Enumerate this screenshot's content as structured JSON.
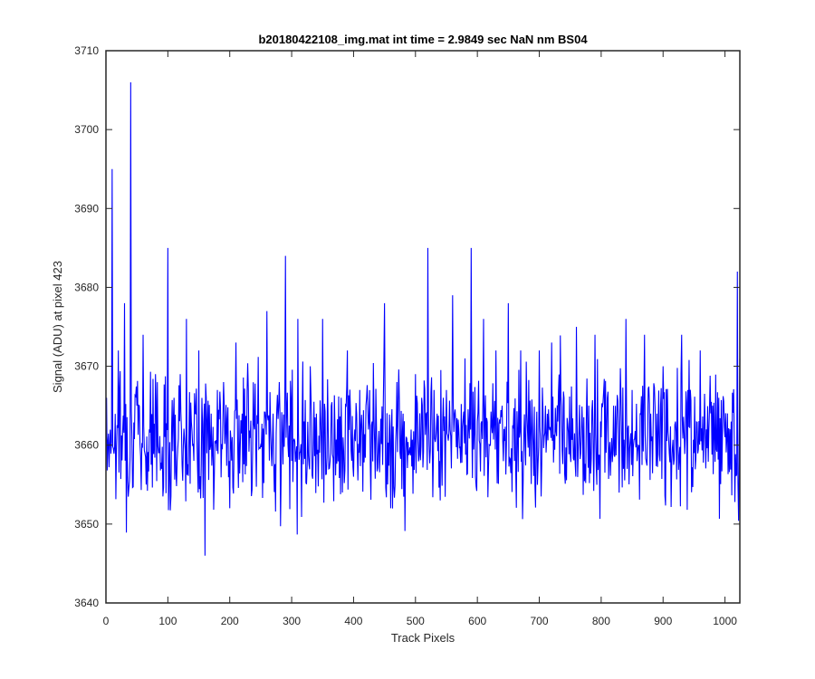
{
  "chart_data": {
    "type": "line",
    "title": "b20180422108_img.mat int time = 2.9849 sec  NaN nm BS04",
    "xlabel": "Track Pixels",
    "ylabel": "Signal (ADU) at pixel 423",
    "xlim": [
      0,
      1024
    ],
    "ylim": [
      3640,
      3710
    ],
    "xticks": [
      0,
      100,
      200,
      300,
      400,
      500,
      600,
      700,
      800,
      900,
      1000
    ],
    "yticks": [
      3640,
      3650,
      3660,
      3670,
      3680,
      3690,
      3700,
      3710
    ],
    "grid": false,
    "line_color": "#0000ff",
    "series": [
      {
        "name": "",
        "x": [
          1,
          10,
          20,
          30,
          40,
          50,
          60,
          70,
          80,
          90,
          100,
          110,
          120,
          130,
          140,
          150,
          160,
          170,
          180,
          190,
          200,
          210,
          220,
          230,
          240,
          250,
          260,
          270,
          280,
          290,
          300,
          310,
          320,
          330,
          340,
          350,
          360,
          370,
          380,
          390,
          400,
          410,
          420,
          430,
          440,
          450,
          460,
          470,
          480,
          490,
          500,
          510,
          520,
          530,
          540,
          550,
          560,
          570,
          580,
          590,
          600,
          610,
          620,
          630,
          640,
          650,
          660,
          670,
          680,
          690,
          700,
          710,
          720,
          730,
          740,
          750,
          760,
          770,
          780,
          790,
          800,
          810,
          820,
          830,
          840,
          850,
          860,
          870,
          880,
          890,
          900,
          910,
          920,
          930,
          940,
          950,
          960,
          970,
          980,
          990,
          1000,
          1010,
          1020,
          1024
        ],
        "values": [
          3666,
          3695,
          3672,
          3678,
          3706,
          3665,
          3674,
          3662,
          3669,
          3657,
          3685,
          3666,
          3669,
          3676,
          3660,
          3672,
          3646,
          3664,
          3667,
          3668,
          3652,
          3673,
          3664,
          3667,
          3662,
          3660,
          3677,
          3664,
          3668,
          3684,
          3658,
          3676,
          3663,
          3670,
          3664,
          3676,
          3657,
          3662,
          3666,
          3672,
          3656,
          3667,
          3665,
          3663,
          3660,
          3678,
          3652,
          3668,
          3664,
          3659,
          3669,
          3666,
          3685,
          3667,
          3653,
          3667,
          3679,
          3662,
          3671,
          3685,
          3663,
          3676,
          3660,
          3672,
          3665,
          3678,
          3658,
          3672,
          3664,
          3660,
          3672,
          3665,
          3673,
          3663,
          3666,
          3659,
          3675,
          3662,
          3665,
          3674,
          3661,
          3666,
          3665,
          3662,
          3676,
          3667,
          3660,
          3674,
          3664,
          3664,
          3670,
          3659,
          3663,
          3674,
          3667,
          3659,
          3672,
          3662,
          3665,
          3666,
          3661,
          3663,
          3682,
          3671
        ]
      }
    ]
  }
}
